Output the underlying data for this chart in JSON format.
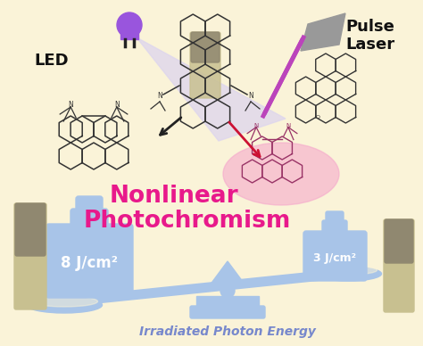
{
  "bg_color": "#FAF3D8",
  "title_line1": "Nonlinear",
  "title_line2": "Photochromism",
  "title_color": "#E8198B",
  "title_fontsize": 19,
  "led_label": "LED",
  "pulse_label1": "Pulse",
  "pulse_label2": "Laser",
  "label_color": "#111111",
  "label_fontsize": 13,
  "weight_color": "#A8C4E8",
  "weight_left_label": "8 J/cm²",
  "weight_right_label": "3 J/cm²",
  "weight_label_color": "#ffffff",
  "weight_label_fontsize": 12,
  "scale_label": "Irradiated Photon Energy",
  "scale_label_color": "#7788CC",
  "scale_label_fontsize": 10,
  "led_color": "#7744CC",
  "led_body_color": "#9955DD",
  "laser_color": "#999999",
  "triangle_color": "#DDD5EE",
  "arrow_black": "#222222",
  "arrow_red": "#CC1133",
  "pink_bg": "#F5A8CC",
  "beam_color": "#BB44BB",
  "mol_color": "#333333",
  "mol_color_right": "#993366",
  "tube_body": "#C8C090",
  "tube_dark": "#908870"
}
